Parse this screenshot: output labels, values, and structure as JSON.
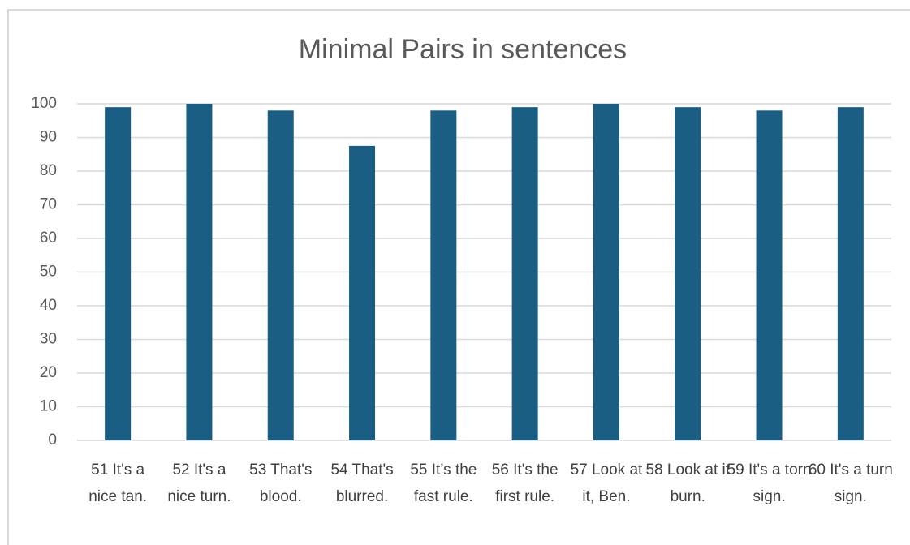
{
  "chart_data": {
    "type": "bar",
    "title": "Minimal Pairs in sentences",
    "categories": [
      "51 It's a nice tan.",
      "52 It's a nice turn.",
      "53 That's blood.",
      "54 That's blurred.",
      "55 It’s the fast rule.",
      "56 It's the first rule.",
      "57 Look at it, Ben.",
      "58 Look at it burn.",
      "59 It's a torn sign.",
      "60 It's a turn sign."
    ],
    "values": [
      99,
      100,
      98,
      87.5,
      98,
      99,
      100,
      99,
      98,
      99
    ],
    "color": "#1a5f83",
    "ylim": [
      0,
      100
    ],
    "yticks": [
      0,
      10,
      20,
      30,
      40,
      50,
      60,
      70,
      80,
      90,
      100
    ],
    "grid": true
  }
}
